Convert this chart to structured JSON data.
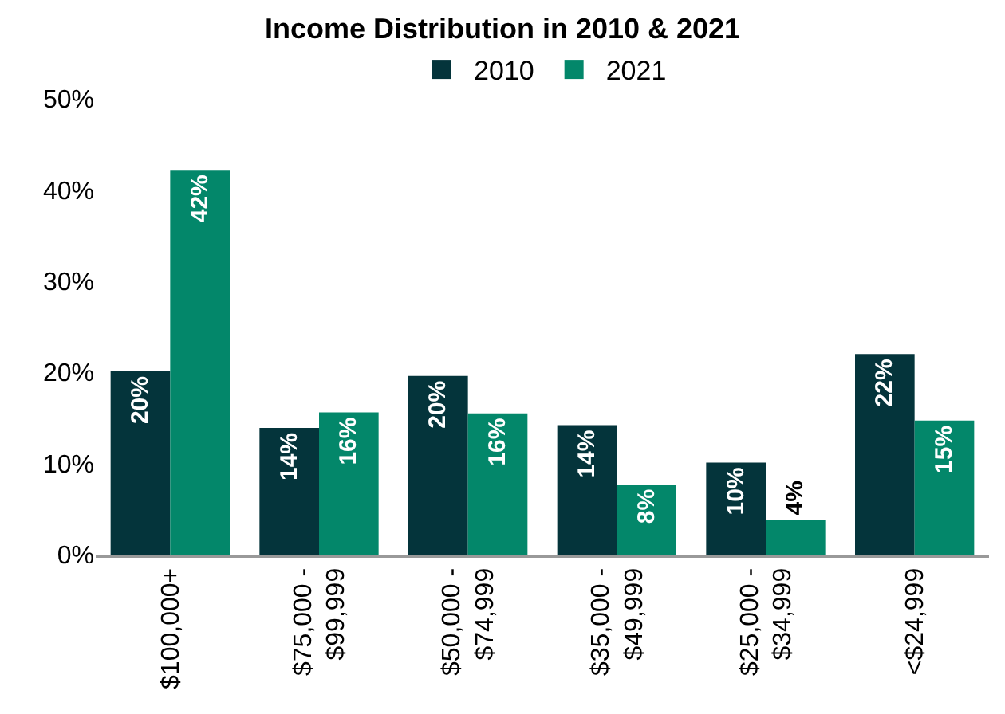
{
  "chart_data": {
    "type": "bar",
    "title": "Income Distribution in 2010 & 2021",
    "categories": [
      "$100,000+",
      "$75,000 -\n$99,999",
      "$50,000 -\n$74,999",
      "$35,000 -\n$49,999",
      "$25,000 -\n$34,999",
      "<$24,999"
    ],
    "series": [
      {
        "name": "2010",
        "color": "#04343b",
        "values": [
          20.1,
          13.9,
          19.6,
          14.2,
          10.1,
          22.0
        ],
        "value_labels": [
          "20%",
          "14%",
          "20%",
          "14%",
          "10%",
          "22%"
        ]
      },
      {
        "name": "2021",
        "color": "#03876a",
        "values": [
          42.2,
          15.6,
          15.5,
          7.7,
          3.8,
          14.7
        ],
        "value_labels": [
          "42%",
          "16%",
          "16%",
          "8%",
          "4%",
          "15%"
        ]
      }
    ],
    "ylim": [
      0,
      50
    ],
    "yticks": [
      {
        "value": 0,
        "label": "0%"
      },
      {
        "value": 10,
        "label": "10%"
      },
      {
        "value": 20,
        "label": "20%"
      },
      {
        "value": 30,
        "label": "30%"
      },
      {
        "value": 40,
        "label": "40%"
      },
      {
        "value": 50,
        "label": "50%"
      }
    ],
    "legend": "top"
  }
}
